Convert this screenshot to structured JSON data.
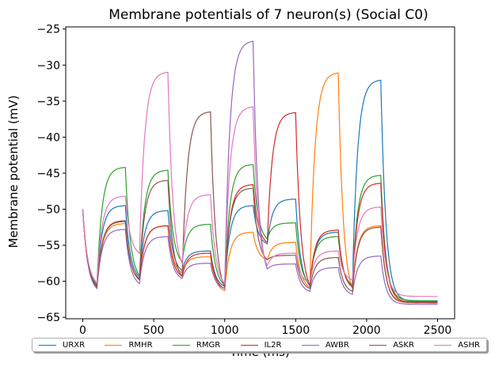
{
  "chart_data": {
    "type": "line",
    "title": "Membrane potentials of 7 neuron(s) (Social C0)",
    "xlabel": "Time (ms)",
    "ylabel": "Membrane potential (mV)",
    "xlim": [
      -120,
      2620
    ],
    "ylim": [
      -65.2,
      -24.7
    ],
    "xticks": [
      0,
      500,
      1000,
      1500,
      2000,
      2500
    ],
    "yticks": [
      -65,
      -60,
      -55,
      -50,
      -45,
      -40,
      -35,
      -30,
      -25
    ],
    "xtick_labels": [
      "0",
      "500",
      "1000",
      "1500",
      "2000",
      "2500"
    ],
    "ytick_labels": [
      "−65",
      "−60",
      "−55",
      "−50",
      "−45",
      "−40",
      "−35",
      "−30",
      "−25"
    ],
    "grid": false,
    "legend_position": "bottom",
    "pulse_starts": [
      0,
      100,
      300,
      400,
      600,
      700,
      900,
      1000,
      1200,
      1300,
      1500,
      1600,
      1800,
      1900,
      2100,
      2500
    ],
    "series": [
      {
        "name": "URXR",
        "color": "#1f77b4",
        "values": [
          -50.0,
          -60.6,
          -49.5,
          -59.4,
          -50.2,
          -58.5,
          -55.8,
          -60.7,
          -49.5,
          -54.8,
          -48.6,
          -60.6,
          -53.2,
          -60.7,
          -32.1,
          -62.8
        ]
      },
      {
        "name": "RMHR",
        "color": "#ff7f0e",
        "values": [
          -50.0,
          -60.8,
          -52.0,
          -59.6,
          -52.3,
          -58.8,
          -56.6,
          -61.3,
          -53.2,
          -57.0,
          -54.6,
          -60.8,
          -31.1,
          -61.0,
          -52.3,
          -62.9
        ]
      },
      {
        "name": "RMGR",
        "color": "#2ca02c",
        "values": [
          -50.0,
          -60.4,
          -44.2,
          -59.2,
          -44.6,
          -57.3,
          -52.1,
          -60.5,
          -43.8,
          -54.1,
          -51.9,
          -60.3,
          -53.8,
          -60.5,
          -45.3,
          -62.7
        ]
      },
      {
        "name": "IL2R",
        "color": "#d62728",
        "values": [
          -50.0,
          -60.8,
          -51.6,
          -59.8,
          -52.3,
          -59.3,
          -56.1,
          -61.0,
          -46.6,
          -54.6,
          -36.6,
          -60.5,
          -52.9,
          -60.8,
          -46.4,
          -62.9
        ]
      },
      {
        "name": "AWBR",
        "color": "#9467bd",
        "values": [
          -50.0,
          -61.0,
          -52.8,
          -60.3,
          -53.8,
          -59.6,
          -57.5,
          -61.0,
          -26.7,
          -58.3,
          -57.6,
          -61.4,
          -58.1,
          -61.8,
          -56.5,
          -63.2
        ]
      },
      {
        "name": "ASKR",
        "color": "#8c564b",
        "values": [
          -50.0,
          -60.7,
          -51.7,
          -59.7,
          -46.0,
          -59.3,
          -36.5,
          -60.8,
          -47.1,
          -57.0,
          -56.4,
          -61.0,
          -56.7,
          -61.4,
          -52.5,
          -63.0
        ]
      },
      {
        "name": "ASHR",
        "color": "#e377c2",
        "values": [
          -50.0,
          -60.2,
          -48.2,
          -56.1,
          -31.0,
          -57.5,
          -48.0,
          -60.3,
          -35.8,
          -57.8,
          -56.1,
          -60.2,
          -55.8,
          -59.8,
          -49.7,
          -62.1
        ]
      }
    ]
  }
}
